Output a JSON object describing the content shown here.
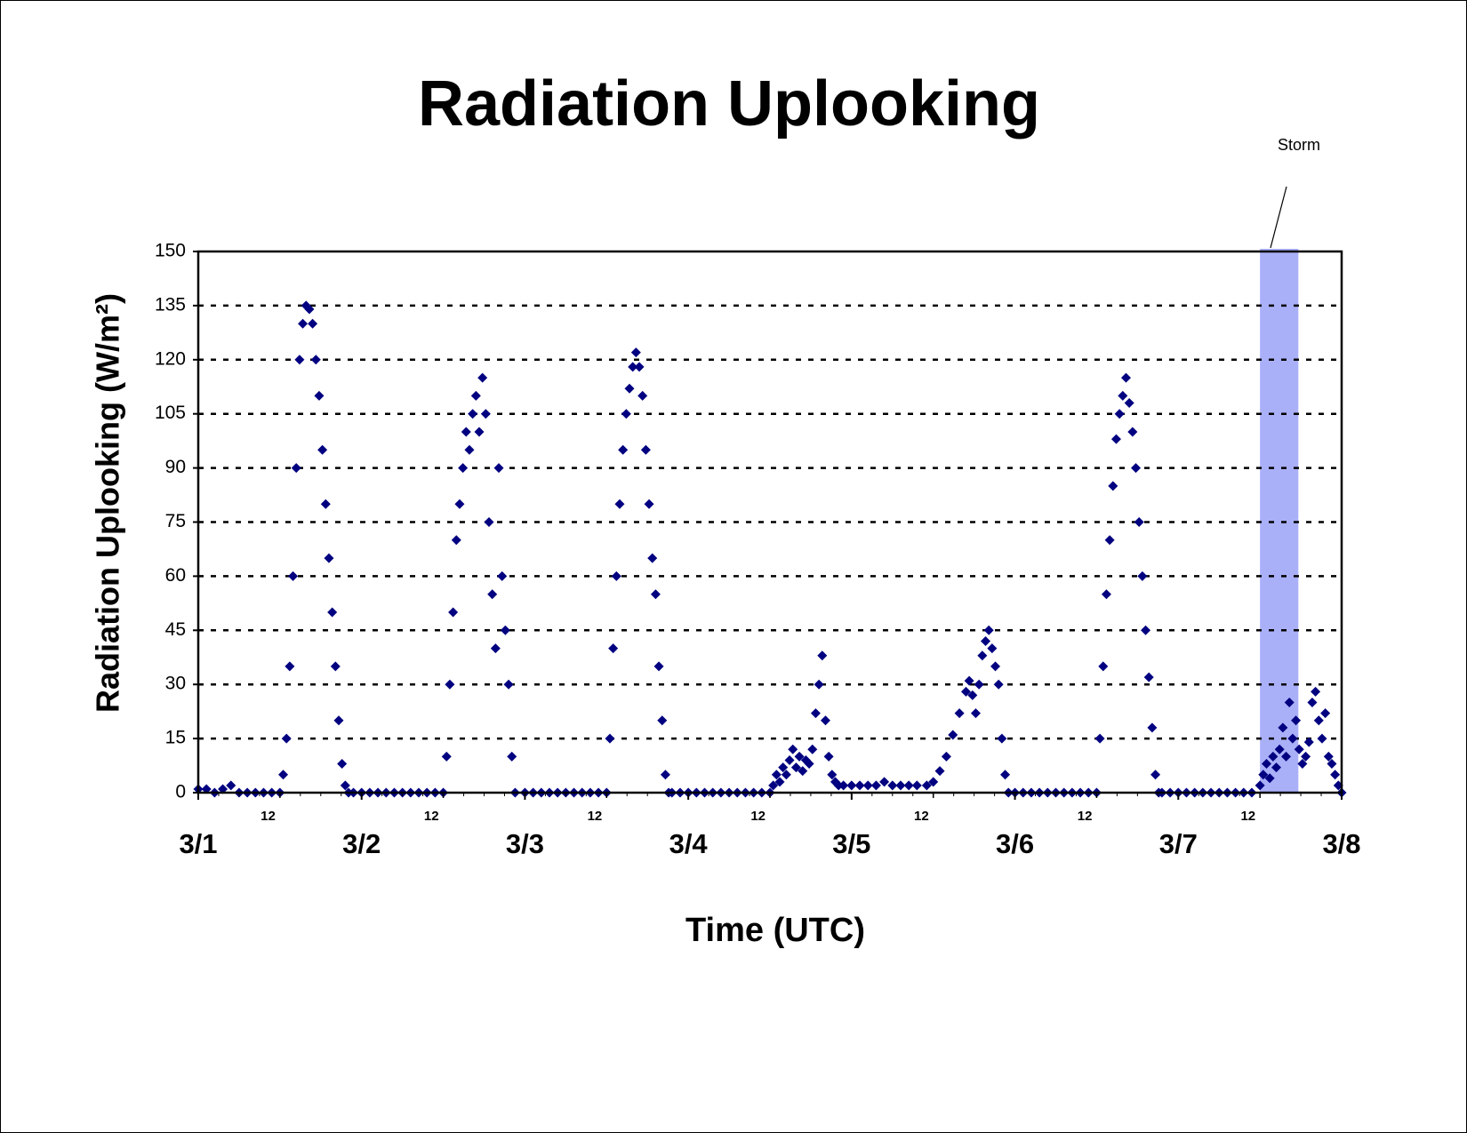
{
  "chart_data": {
    "type": "scatter",
    "title": "Radiation Uplooking",
    "x_label": "Time (UTC)",
    "y_label": "Radiation Uplooking (W/m²)",
    "color": "#000080",
    "marker": "diamond",
    "grid": true,
    "xlim": [
      0,
      7
    ],
    "ylim": [
      0,
      150
    ],
    "yticks": [
      0,
      15,
      30,
      45,
      60,
      75,
      90,
      105,
      120,
      135,
      150
    ],
    "xticks": [
      {
        "value": 0,
        "label": "3/1"
      },
      {
        "value": 1,
        "label": "3/2"
      },
      {
        "value": 2,
        "label": "3/3"
      },
      {
        "value": 3,
        "label": "3/4"
      },
      {
        "value": 4,
        "label": "3/5"
      },
      {
        "value": 5,
        "label": "3/6"
      },
      {
        "value": 6,
        "label": "3/7"
      },
      {
        "value": 7,
        "label": "3/8"
      }
    ],
    "xminor_ticks": [
      {
        "value": 0.5,
        "label": "12"
      },
      {
        "value": 1.5,
        "label": "12"
      },
      {
        "value": 2.5,
        "label": "12"
      },
      {
        "value": 3.5,
        "label": "12"
      },
      {
        "value": 4.5,
        "label": "12"
      },
      {
        "value": 5.5,
        "label": "12"
      },
      {
        "value": 6.5,
        "label": "12"
      }
    ],
    "annotation": {
      "text": "Storm",
      "band": [
        6.5,
        6.735
      ],
      "color": "#aab0f8"
    },
    "x": [
      0,
      0.05,
      0.1,
      0.15,
      0.2,
      0.25,
      0.3,
      0.35,
      0.4,
      0.45,
      0.5,
      0.52,
      0.54,
      0.56,
      0.58,
      0.6,
      0.62,
      0.64,
      0.66,
      0.68,
      0.7,
      0.72,
      0.74,
      0.76,
      0.78,
      0.8,
      0.82,
      0.84,
      0.86,
      0.88,
      0.9,
      0.92,
      0.95,
      1,
      1.05,
      1.1,
      1.15,
      1.2,
      1.25,
      1.3,
      1.35,
      1.4,
      1.45,
      1.5,
      1.52,
      1.54,
      1.56,
      1.58,
      1.6,
      1.62,
      1.64,
      1.66,
      1.68,
      1.7,
      1.72,
      1.74,
      1.76,
      1.78,
      1.8,
      1.82,
      1.84,
      1.86,
      1.88,
      1.9,
      1.92,
      1.94,
      2,
      2.05,
      2.1,
      2.15,
      2.2,
      2.25,
      2.3,
      2.35,
      2.4,
      2.45,
      2.5,
      2.52,
      2.54,
      2.56,
      2.58,
      2.6,
      2.62,
      2.64,
      2.66,
      2.68,
      2.7,
      2.72,
      2.74,
      2.76,
      2.78,
      2.8,
      2.82,
      2.84,
      2.86,
      2.88,
      2.9,
      2.95,
      3,
      3.05,
      3.1,
      3.15,
      3.2,
      3.25,
      3.3,
      3.35,
      3.4,
      3.45,
      3.5,
      3.52,
      3.54,
      3.56,
      3.58,
      3.6,
      3.62,
      3.64,
      3.66,
      3.68,
      3.7,
      3.72,
      3.74,
      3.76,
      3.78,
      3.8,
      3.82,
      3.84,
      3.86,
      3.88,
      3.9,
      3.92,
      3.95,
      4,
      4.05,
      4.1,
      4.15,
      4.2,
      4.25,
      4.3,
      4.35,
      4.4,
      4.46,
      4.5,
      4.54,
      4.58,
      4.62,
      4.66,
      4.7,
      4.72,
      4.74,
      4.76,
      4.78,
      4.8,
      4.82,
      4.84,
      4.86,
      4.88,
      4.9,
      4.92,
      4.94,
      4.96,
      5,
      5.05,
      5.1,
      5.15,
      5.2,
      5.25,
      5.3,
      5.35,
      5.4,
      5.45,
      5.5,
      5.52,
      5.54,
      5.56,
      5.58,
      5.6,
      5.62,
      5.64,
      5.66,
      5.68,
      5.7,
      5.72,
      5.74,
      5.76,
      5.78,
      5.8,
      5.82,
      5.84,
      5.86,
      5.88,
      5.9,
      5.95,
      6,
      6.05,
      6.1,
      6.15,
      6.2,
      6.25,
      6.3,
      6.35,
      6.4,
      6.45,
      6.5,
      6.52,
      6.54,
      6.56,
      6.58,
      6.6,
      6.62,
      6.64,
      6.66,
      6.68,
      6.7,
      6.72,
      6.74,
      6.76,
      6.78,
      6.8,
      6.82,
      6.84,
      6.86,
      6.88,
      6.9,
      6.92,
      6.94,
      6.96,
      6.98,
      7
    ],
    "values": [
      1,
      1,
      0,
      1,
      2,
      0,
      0,
      0,
      0,
      0,
      0,
      5,
      15,
      35,
      60,
      90,
      120,
      130,
      135,
      134,
      130,
      120,
      110,
      95,
      80,
      65,
      50,
      35,
      20,
      8,
      2,
      0,
      0,
      0,
      0,
      0,
      0,
      0,
      0,
      0,
      0,
      0,
      0,
      0,
      10,
      30,
      50,
      70,
      80,
      90,
      100,
      95,
      105,
      110,
      100,
      115,
      105,
      75,
      55,
      40,
      90,
      60,
      45,
      30,
      10,
      0,
      0,
      0,
      0,
      0,
      0,
      0,
      0,
      0,
      0,
      0,
      0,
      15,
      40,
      60,
      80,
      95,
      105,
      112,
      118,
      122,
      118,
      110,
      95,
      80,
      65,
      55,
      35,
      20,
      5,
      0,
      0,
      0,
      0,
      0,
      0,
      0,
      0,
      0,
      0,
      0,
      0,
      0,
      0,
      2,
      5,
      3,
      7,
      5,
      9,
      12,
      7,
      10,
      6,
      9,
      8,
      12,
      22,
      30,
      38,
      20,
      10,
      5,
      3,
      2,
      2,
      2,
      2,
      2,
      2,
      3,
      2,
      2,
      2,
      2,
      2,
      3,
      6,
      10,
      16,
      22,
      28,
      31,
      27,
      22,
      30,
      38,
      42,
      45,
      40,
      35,
      30,
      15,
      5,
      0,
      0,
      0,
      0,
      0,
      0,
      0,
      0,
      0,
      0,
      0,
      0,
      15,
      35,
      55,
      70,
      85,
      98,
      105,
      110,
      115,
      108,
      100,
      90,
      75,
      60,
      45,
      32,
      18,
      5,
      0,
      0,
      0,
      0,
      0,
      0,
      0,
      0,
      0,
      0,
      0,
      0,
      0,
      2,
      5,
      8,
      4,
      10,
      7,
      12,
      18,
      10,
      25,
      15,
      20,
      12,
      8,
      10,
      14,
      25,
      28,
      20,
      15,
      22,
      10,
      8,
      5,
      2,
      0
    ]
  }
}
